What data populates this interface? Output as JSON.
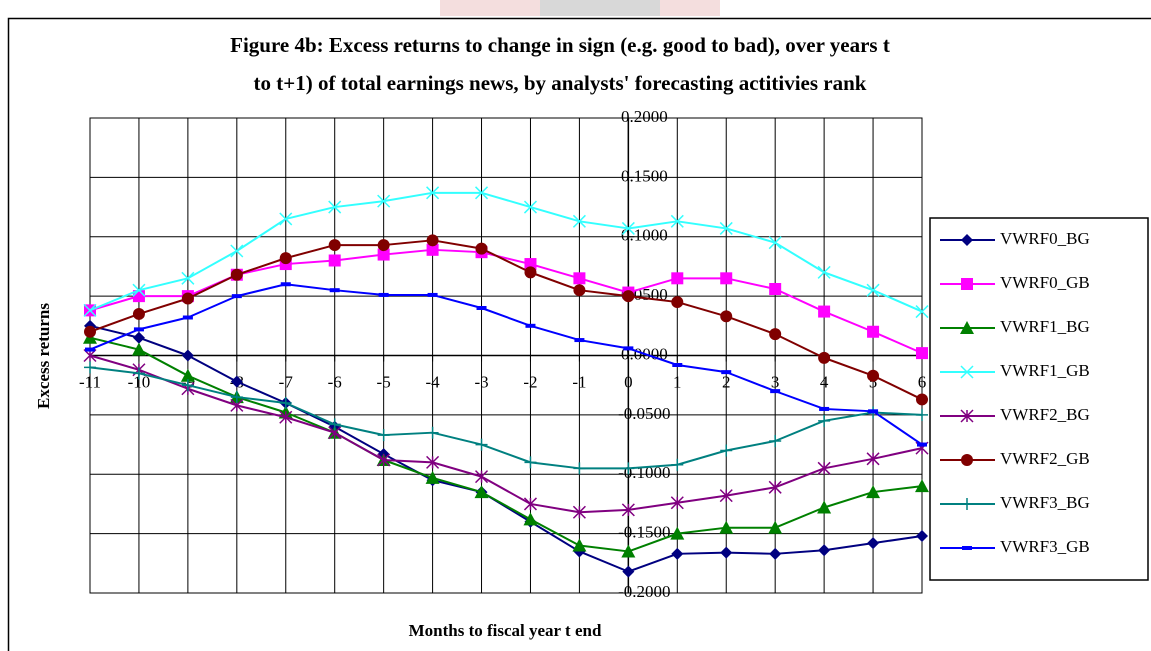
{
  "chart_data": {
    "type": "line",
    "title": [
      "Figure 4b: Excess returns to change in sign (e.g. good to bad), over years t",
      "to t+1) of total earnings news, by analysts' forecasting actitivies rank"
    ],
    "xlabel": "Months to fiscal year t end",
    "ylabel": "Excess returns",
    "x": [
      -11,
      -10,
      -9,
      -8,
      -7,
      -6,
      -5,
      -4,
      -3,
      -2,
      -1,
      0,
      1,
      2,
      3,
      4,
      5,
      6
    ],
    "xlim": [
      -11,
      6
    ],
    "xticks": [
      -11,
      -10,
      -9,
      -8,
      -7,
      -6,
      -5,
      -4,
      -3,
      -2,
      -1,
      0,
      1,
      2,
      3,
      4,
      5,
      6
    ],
    "ylim": [
      -0.2,
      0.2
    ],
    "yticks": [
      {
        "value": -0.2,
        "label": "-0.2000"
      },
      {
        "value": -0.15,
        "label": "-0.1500"
      },
      {
        "value": -0.1,
        "label": "-0.1000"
      },
      {
        "value": -0.05,
        "label": "-0.0500"
      },
      {
        "value": 0,
        "label": "0.0000"
      },
      {
        "value": 0.05,
        "label": "0.0500"
      },
      {
        "value": 0.1,
        "label": "0.1000"
      },
      {
        "value": 0.15,
        "label": "0.1500"
      },
      {
        "value": 0.2,
        "label": "0.2000"
      }
    ],
    "grid": true,
    "legend": "right",
    "series": [
      {
        "name": "VWRF0_BG",
        "color": "#000080",
        "marker": "diamond",
        "values": [
          0.025,
          0.015,
          0.0,
          -0.022,
          -0.04,
          -0.06,
          -0.083,
          -0.105,
          -0.115,
          -0.14,
          -0.165,
          -0.182,
          -0.167,
          -0.166,
          -0.167,
          -0.164,
          -0.158,
          -0.152
        ]
      },
      {
        "name": "VWRF0_GB",
        "color": "#ff00ff",
        "marker": "square",
        "values": [
          0.038,
          0.05,
          0.05,
          0.068,
          0.077,
          0.08,
          0.085,
          0.089,
          0.087,
          0.077,
          0.065,
          0.053,
          0.065,
          0.065,
          0.056,
          0.037,
          0.02,
          0.002
        ]
      },
      {
        "name": "VWRF1_BG",
        "color": "#008000",
        "marker": "triangle",
        "values": [
          0.015,
          0.005,
          -0.017,
          -0.035,
          -0.048,
          -0.065,
          -0.088,
          -0.103,
          -0.115,
          -0.138,
          -0.16,
          -0.165,
          -0.15,
          -0.145,
          -0.145,
          -0.128,
          -0.115,
          -0.11
        ]
      },
      {
        "name": "VWRF1_GB",
        "color": "#33ffff",
        "marker": "x",
        "values": [
          0.038,
          0.055,
          0.065,
          0.088,
          0.115,
          0.125,
          0.13,
          0.137,
          0.137,
          0.125,
          0.113,
          0.107,
          0.113,
          0.107,
          0.095,
          0.07,
          0.055,
          0.037
        ]
      },
      {
        "name": "VWRF2_BG",
        "color": "#800080",
        "marker": "star",
        "values": [
          0.0,
          -0.012,
          -0.028,
          -0.042,
          -0.052,
          -0.065,
          -0.088,
          -0.09,
          -0.102,
          -0.125,
          -0.132,
          -0.13,
          -0.124,
          -0.118,
          -0.111,
          -0.095,
          -0.087,
          -0.078
        ]
      },
      {
        "name": "VWRF2_GB",
        "color": "#800000",
        "marker": "circle",
        "values": [
          0.02,
          0.035,
          0.048,
          0.068,
          0.082,
          0.093,
          0.093,
          0.097,
          0.09,
          0.07,
          0.055,
          0.05,
          0.045,
          0.033,
          0.018,
          -0.002,
          -0.017,
          -0.037
        ]
      },
      {
        "name": "VWRF3_BG",
        "color": "#008080",
        "marker": "plus",
        "values": [
          -0.01,
          -0.015,
          -0.025,
          -0.035,
          -0.04,
          -0.058,
          -0.067,
          -0.065,
          -0.075,
          -0.09,
          -0.095,
          -0.095,
          -0.092,
          -0.08,
          -0.072,
          -0.055,
          -0.048,
          -0.05
        ]
      },
      {
        "name": "VWRF3_GB",
        "color": "#0000ff",
        "marker": "dash",
        "values": [
          0.005,
          0.022,
          0.032,
          0.05,
          0.06,
          0.055,
          0.051,
          0.051,
          0.04,
          0.025,
          0.013,
          0.006,
          -0.008,
          -0.014,
          -0.03,
          -0.045,
          -0.047,
          -0.075
        ]
      }
    ]
  }
}
